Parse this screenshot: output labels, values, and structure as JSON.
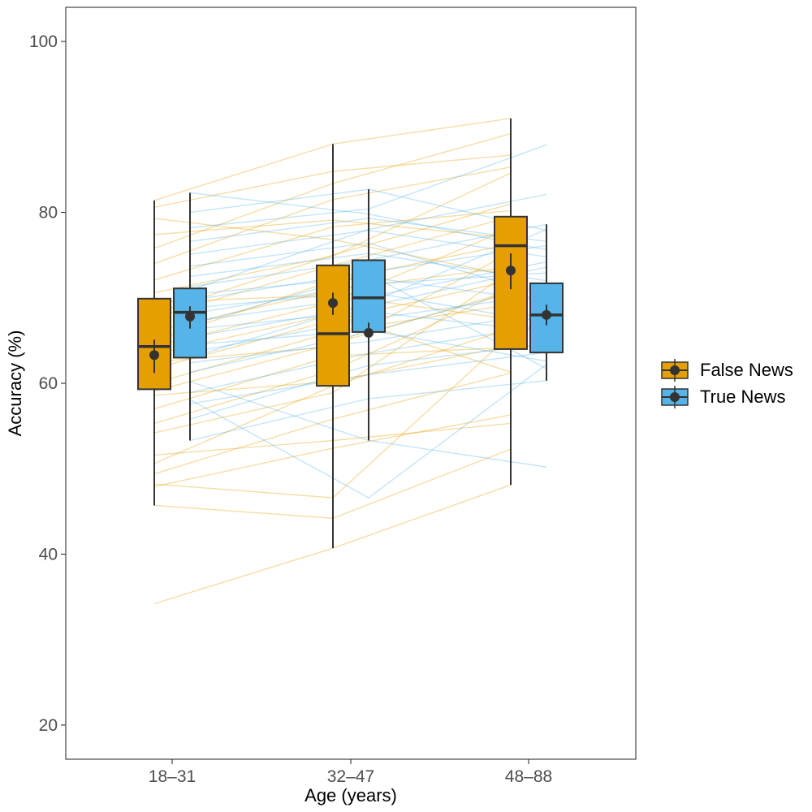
{
  "chart_data": {
    "type": "boxplot",
    "xlabel": "Age (years)",
    "ylabel": "Accuracy (%)",
    "ylim": [
      16,
      104
    ],
    "yticks": [
      20,
      40,
      60,
      80,
      100
    ],
    "categories": [
      "18–31",
      "32–47",
      "48–88"
    ],
    "grid": false,
    "legend_position": "right",
    "series": [
      {
        "name": "False News",
        "color": "#E69F00",
        "boxes": [
          {
            "category": "18–31",
            "whisker_low": 45.7,
            "q1": 59.3,
            "median": 64.3,
            "q3": 69.9,
            "whisker_high": 81.4,
            "mean": 63.3,
            "ci_low": 61.2,
            "ci_high": 65.1
          },
          {
            "category": "32–47",
            "whisker_low": 40.7,
            "q1": 59.7,
            "median": 65.8,
            "q3": 73.8,
            "whisker_high": 88.0,
            "mean": 69.4,
            "ci_low": 68.0,
            "ci_high": 70.6
          },
          {
            "category": "48–88",
            "whisker_low": 48.1,
            "q1": 64.0,
            "median": 76.1,
            "q3": 79.5,
            "whisker_high": 91.0,
            "mean": 73.2,
            "ci_low": 71.0,
            "ci_high": 75.2
          }
        ]
      },
      {
        "name": "True News",
        "color": "#56B4E9",
        "boxes": [
          {
            "category": "18–31",
            "whisker_low": 53.3,
            "q1": 63.0,
            "median": 68.3,
            "q3": 71.1,
            "whisker_high": 82.3,
            "mean": 67.8,
            "ci_low": 66.4,
            "ci_high": 69.0
          },
          {
            "category": "32–47",
            "whisker_low": 53.3,
            "q1": 66.0,
            "median": 70.0,
            "q3": 74.4,
            "whisker_high": 82.7,
            "mean": 65.9,
            "ci_low": 64.9,
            "ci_high": 67.1
          },
          {
            "category": "48–88",
            "whisker_low": 60.3,
            "q1": 63.6,
            "median": 68.0,
            "q3": 71.7,
            "whisker_high": 78.6,
            "mean": 68.0,
            "ci_low": 66.8,
            "ci_high": 69.2
          }
        ]
      }
    ],
    "participant_lines": {
      "False News": [
        [
          34.2,
          40.7,
          48.1
        ],
        [
          45.7,
          44.2,
          52.3
        ],
        [
          47.9,
          52.4,
          56.3
        ],
        [
          48.2,
          46.6,
          65.7
        ],
        [
          49.4,
          55.8,
          61.2
        ],
        [
          50.6,
          59.7,
          66.4
        ],
        [
          51.6,
          53.3,
          55.3
        ],
        [
          54.2,
          58.9,
          73.1
        ],
        [
          55.3,
          61.5,
          71.1
        ],
        [
          57.0,
          63.2,
          64.2
        ],
        [
          58.6,
          60.2,
          64.4
        ],
        [
          59.1,
          64.6,
          70.8
        ],
        [
          60.0,
          66.0,
          69.2
        ],
        [
          61.7,
          67.4,
          72.0
        ],
        [
          62.5,
          64.3,
          75.3
        ],
        [
          63.4,
          68.1,
          61.3
        ],
        [
          64.3,
          69.5,
          78.1
        ],
        [
          65.0,
          72.0,
          76.3
        ],
        [
          66.1,
          70.9,
          73.6
        ],
        [
          67.7,
          73.8,
          79.5
        ],
        [
          68.2,
          75.0,
          81.0
        ],
        [
          69.5,
          70.3,
          67.5
        ],
        [
          70.6,
          74.9,
          84.6
        ],
        [
          72.1,
          78.3,
          80.2
        ],
        [
          74.0,
          81.5,
          85.3
        ],
        [
          75.8,
          83.4,
          89.2
        ],
        [
          77.4,
          79.1,
          77.0
        ],
        [
          79.3,
          76.8,
          72.6
        ],
        [
          80.6,
          84.8,
          86.7
        ],
        [
          81.4,
          88.0,
          91.0
        ]
      ],
      "True News": [
        [
          53.3,
          58.2,
          60.3
        ],
        [
          55.8,
          62.1,
          64.6
        ],
        [
          57.6,
          61.0,
          63.6
        ],
        [
          58.9,
          63.5,
          66.8
        ],
        [
          60.2,
          53.3,
          50.2
        ],
        [
          61.3,
          66.0,
          71.7
        ],
        [
          62.4,
          64.9,
          68.3
        ],
        [
          63.6,
          67.5,
          70.4
        ],
        [
          64.5,
          66.2,
          62.6
        ],
        [
          65.4,
          69.0,
          73.6
        ],
        [
          66.3,
          68.4,
          66.0
        ],
        [
          67.2,
          70.1,
          74.2
        ],
        [
          68.1,
          71.6,
          72.9
        ],
        [
          68.8,
          70.7,
          67.1
        ],
        [
          69.7,
          73.0,
          76.1
        ],
        [
          70.4,
          72.4,
          69.6
        ],
        [
          71.3,
          74.4,
          78.6
        ],
        [
          72.5,
          75.2,
          72.0
        ],
        [
          73.7,
          76.4,
          70.2
        ],
        [
          75.1,
          77.9,
          74.8
        ],
        [
          76.6,
          79.3,
          76.6
        ],
        [
          78.2,
          80.4,
          87.9
        ],
        [
          80.0,
          82.7,
          77.9
        ],
        [
          82.3,
          79.8,
          75.6
        ],
        [
          58.1,
          46.6,
          62.2
        ],
        [
          66.8,
          72.8,
          61.7
        ],
        [
          70.9,
          78.0,
          82.1
        ],
        [
          63.0,
          69.4,
          78.0
        ]
      ]
    }
  }
}
